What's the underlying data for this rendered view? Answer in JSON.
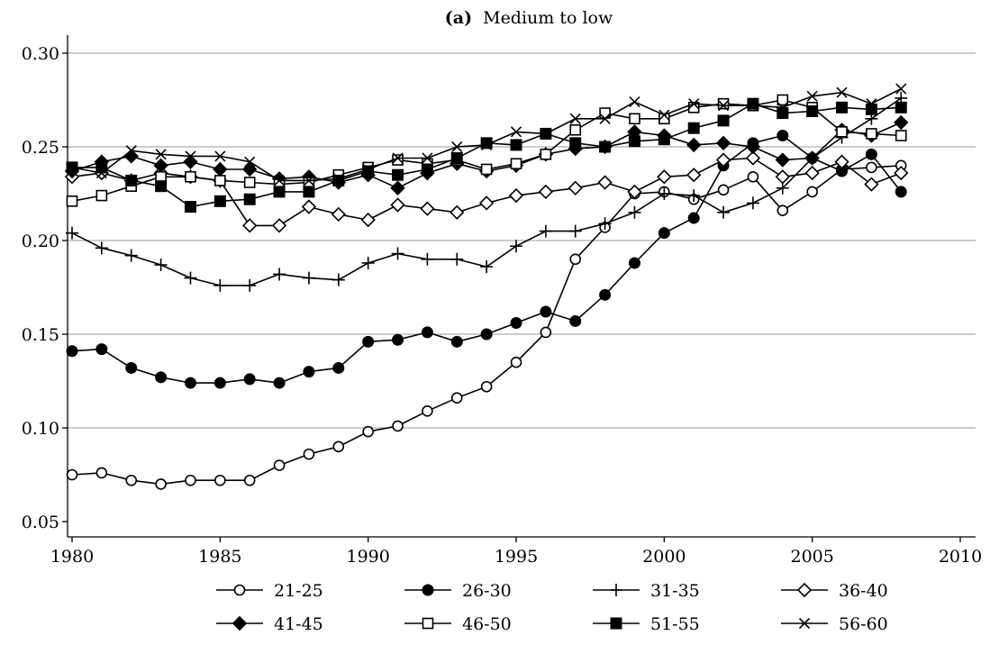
{
  "chart_data": {
    "type": "line",
    "title_prefix": "(a)",
    "title": "Medium to low",
    "xlabel": "",
    "ylabel": "",
    "xlim": [
      1980,
      2010
    ],
    "ylim": [
      0.05,
      0.3
    ],
    "x_ticks": [
      1980,
      1985,
      1990,
      1995,
      2000,
      2005,
      2010
    ],
    "y_ticks": [
      "0.05",
      "0.10",
      "0.15",
      "0.20",
      "0.25",
      "0.30"
    ],
    "grid": "horizontal",
    "legend_position": "bottom",
    "x": [
      1980,
      1981,
      1982,
      1983,
      1984,
      1985,
      1986,
      1987,
      1988,
      1989,
      1990,
      1991,
      1992,
      1993,
      1994,
      1995,
      1996,
      1997,
      1998,
      1999,
      2000,
      2001,
      2002,
      2003,
      2004,
      2005,
      2006,
      2007,
      2008
    ],
    "series": [
      {
        "name": "21-25",
        "marker": "circle-open",
        "values": [
          0.075,
          0.076,
          0.072,
          0.07,
          0.072,
          0.072,
          0.072,
          0.08,
          0.086,
          0.09,
          0.098,
          0.101,
          0.109,
          0.116,
          0.122,
          0.135,
          0.151,
          0.19,
          0.207,
          0.225,
          0.226,
          0.222,
          0.227,
          0.234,
          0.216,
          0.226,
          0.238,
          0.239,
          0.24
        ]
      },
      {
        "name": "26-30",
        "marker": "circle-filled",
        "values": [
          0.141,
          0.142,
          0.132,
          0.127,
          0.124,
          0.124,
          0.126,
          0.124,
          0.13,
          0.132,
          0.146,
          0.147,
          0.151,
          0.146,
          0.15,
          0.156,
          0.162,
          0.157,
          0.171,
          0.188,
          0.204,
          0.212,
          0.24,
          0.252,
          0.256,
          0.244,
          0.237,
          0.246,
          0.226
        ]
      },
      {
        "name": "31-35",
        "marker": "plus",
        "values": [
          0.204,
          0.196,
          0.192,
          0.187,
          0.18,
          0.176,
          0.176,
          0.182,
          0.18,
          0.179,
          0.188,
          0.193,
          0.19,
          0.19,
          0.186,
          0.197,
          0.205,
          0.205,
          0.209,
          0.215,
          0.225,
          0.224,
          0.215,
          0.22,
          0.228,
          0.244,
          0.255,
          0.265,
          0.276
        ]
      },
      {
        "name": "36-40",
        "marker": "diamond-open",
        "values": [
          0.234,
          0.236,
          0.232,
          0.236,
          0.234,
          0.232,
          0.208,
          0.208,
          0.218,
          0.214,
          0.211,
          0.219,
          0.217,
          0.215,
          0.22,
          0.224,
          0.226,
          0.228,
          0.231,
          0.226,
          0.234,
          0.235,
          0.243,
          0.244,
          0.234,
          0.236,
          0.242,
          0.23,
          0.236
        ]
      },
      {
        "name": "41-45",
        "marker": "diamond-filled",
        "values": [
          0.237,
          0.242,
          0.245,
          0.24,
          0.242,
          0.238,
          0.238,
          0.233,
          0.234,
          0.231,
          0.235,
          0.228,
          0.236,
          0.241,
          0.237,
          0.24,
          0.246,
          0.249,
          0.25,
          0.258,
          0.256,
          0.251,
          0.252,
          0.25,
          0.243,
          0.244,
          0.259,
          0.256,
          0.263
        ]
      },
      {
        "name": "46-50",
        "marker": "square-open",
        "values": [
          0.221,
          0.224,
          0.229,
          0.234,
          0.234,
          0.232,
          0.231,
          0.23,
          0.231,
          0.235,
          0.239,
          0.243,
          0.241,
          0.243,
          0.238,
          0.241,
          0.246,
          0.259,
          0.268,
          0.265,
          0.265,
          0.271,
          0.273,
          0.272,
          0.275,
          0.271,
          0.258,
          0.257,
          0.256
        ]
      },
      {
        "name": "51-55",
        "marker": "square-filled",
        "values": [
          0.239,
          0.239,
          0.232,
          0.229,
          0.218,
          0.221,
          0.222,
          0.226,
          0.226,
          0.232,
          0.237,
          0.235,
          0.238,
          0.244,
          0.252,
          0.251,
          0.257,
          0.252,
          0.25,
          0.253,
          0.254,
          0.26,
          0.264,
          0.273,
          0.268,
          0.269,
          0.271,
          0.27,
          0.271
        ]
      },
      {
        "name": "56-60",
        "marker": "x",
        "values": [
          0.239,
          0.236,
          0.248,
          0.246,
          0.245,
          0.245,
          0.242,
          0.232,
          0.232,
          0.233,
          0.238,
          0.244,
          0.244,
          0.25,
          0.251,
          0.258,
          0.257,
          0.265,
          0.265,
          0.274,
          0.267,
          0.273,
          0.272,
          0.272,
          0.271,
          0.277,
          0.279,
          0.273,
          0.281
        ]
      }
    ]
  }
}
